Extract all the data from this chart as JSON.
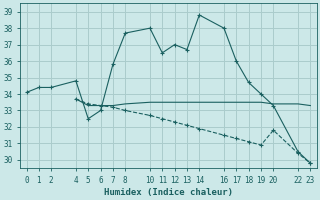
{
  "xlabel": "Humidex (Indice chaleur)",
  "bg_color": "#cce8e8",
  "grid_color": "#aacccc",
  "line_color": "#1a6060",
  "xticks": [
    0,
    1,
    2,
    4,
    5,
    6,
    7,
    8,
    10,
    11,
    12,
    13,
    14,
    16,
    17,
    18,
    19,
    20,
    22,
    23
  ],
  "yticks": [
    30,
    31,
    32,
    33,
    34,
    35,
    36,
    37,
    38,
    39
  ],
  "ylim": [
    29.5,
    39.5
  ],
  "xlim": [
    -0.5,
    23.5
  ],
  "line1_x": [
    0,
    1,
    2,
    4,
    5,
    6,
    7,
    8,
    10,
    11,
    12,
    13,
    14,
    16,
    17,
    18,
    19,
    20,
    22,
    23
  ],
  "line1_y": [
    34.1,
    34.4,
    34.4,
    34.8,
    32.5,
    33.0,
    35.8,
    37.7,
    38.0,
    36.5,
    37.0,
    36.7,
    38.8,
    38.0,
    36.0,
    34.7,
    34.0,
    33.3,
    30.5,
    29.8
  ],
  "line2_x": [
    4,
    5,
    6,
    7,
    8,
    10,
    11,
    12,
    13,
    14,
    16,
    17,
    18,
    19,
    20,
    22,
    23
  ],
  "line2_y": [
    33.7,
    33.3,
    33.3,
    33.3,
    33.4,
    33.5,
    33.5,
    33.5,
    33.5,
    33.5,
    33.5,
    33.5,
    33.5,
    33.5,
    33.4,
    33.4,
    33.3
  ],
  "line3_x": [
    4,
    5,
    6,
    7,
    8,
    10,
    11,
    12,
    13,
    14,
    16,
    17,
    18,
    19,
    20,
    22,
    23
  ],
  "line3_y": [
    33.7,
    33.4,
    33.3,
    33.2,
    33.0,
    32.7,
    32.5,
    32.3,
    32.1,
    31.9,
    31.5,
    31.3,
    31.1,
    30.9,
    31.8,
    30.4,
    29.8
  ]
}
